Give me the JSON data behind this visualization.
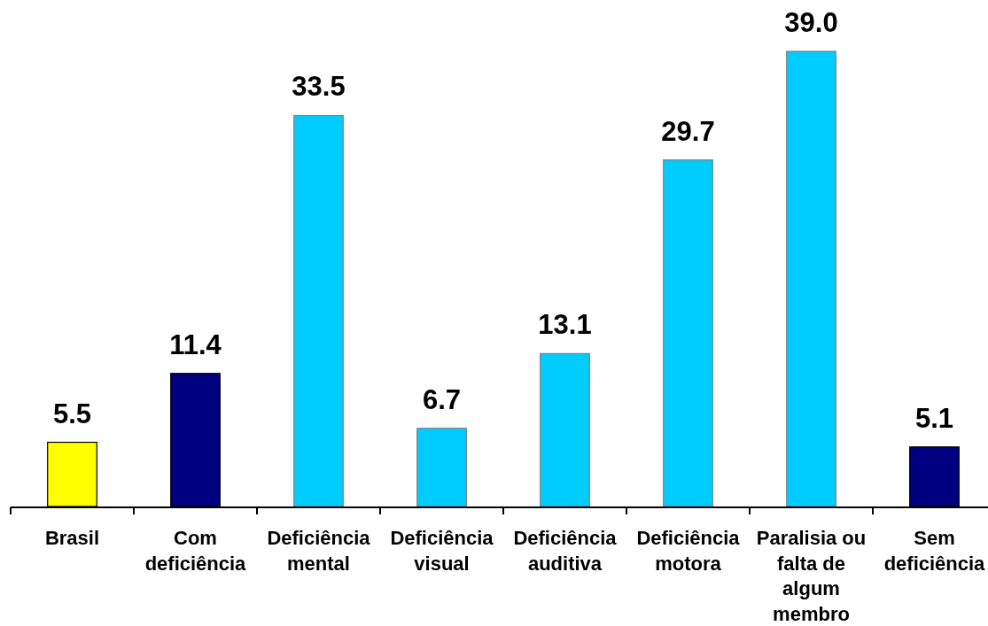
{
  "chart_data": {
    "type": "bar",
    "categories": [
      "Brasil",
      "Com deficiência",
      "Deficiência mental",
      "Deficiência visual",
      "Deficiência auditiva",
      "Deficiência motora",
      "Paralisia ou falta de algum membro",
      "Sem deficiência"
    ],
    "values": [
      5.5,
      11.4,
      33.5,
      6.7,
      13.1,
      29.7,
      39.0,
      5.1
    ],
    "colors": [
      "#ffff00",
      "#000080",
      "#00ccff",
      "#00ccff",
      "#00ccff",
      "#00ccff",
      "#00ccff",
      "#000080"
    ],
    "value_labels": [
      "5.5",
      "11.4",
      "33.5",
      "6.7",
      "13.1",
      "29.7",
      "39.0",
      "5.1"
    ]
  }
}
